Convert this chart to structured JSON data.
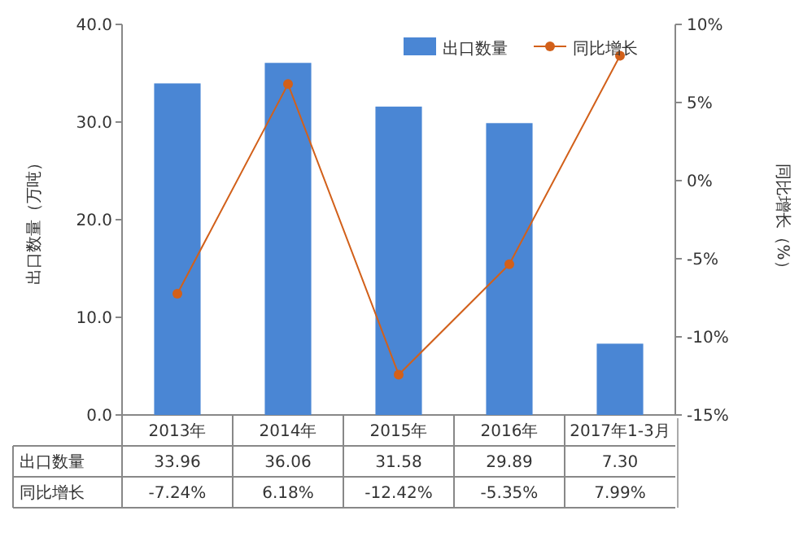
{
  "chart_data": {
    "type": "bar",
    "categories": [
      "2013年",
      "2014年",
      "2015年",
      "2016年",
      "2017年1-3月"
    ],
    "ylabel": "出口数量（万吨）",
    "y2label": "同比增长（%）",
    "ylim": [
      0,
      40
    ],
    "yticks": [
      {
        "value": 0,
        "label": "0.0"
      },
      {
        "value": 10,
        "label": "10.0"
      },
      {
        "value": 20,
        "label": "20.0"
      },
      {
        "value": 30,
        "label": "30.0"
      },
      {
        "value": 40,
        "label": "40.0"
      }
    ],
    "y2lim": [
      -15,
      10
    ],
    "y2ticks": [
      {
        "value": -15,
        "label": "-15%"
      },
      {
        "value": -10,
        "label": "-10%"
      },
      {
        "value": -5,
        "label": "-5%"
      },
      {
        "value": 0,
        "label": "0%"
      },
      {
        "value": 5,
        "label": "5%"
      },
      {
        "value": 10,
        "label": "10%"
      }
    ],
    "legend": "top right",
    "marker": "circle",
    "line_style": "solid",
    "series": [
      {
        "name": "出口数量",
        "color": "#4a86d4",
        "values": [
          33.96,
          36.06,
          31.58,
          29.89,
          7.3
        ],
        "value_labels": [
          "33.96",
          "36.06",
          "31.58",
          "29.89",
          "7.30"
        ]
      },
      {
        "name": "同比增长",
        "type": "line",
        "axis": "y2",
        "color": "#d2601a",
        "values": [
          -7.24,
          6.18,
          -12.42,
          -5.35,
          7.99
        ],
        "value_labels": [
          "-7.24%",
          "6.18%",
          "-12.42%",
          "-5.35%",
          "7.99%"
        ]
      }
    ]
  }
}
